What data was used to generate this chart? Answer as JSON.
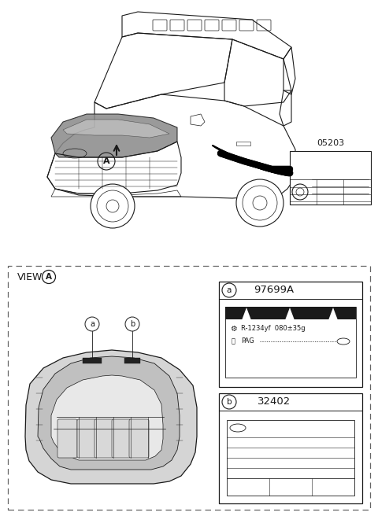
{
  "bg_color": "#ffffff",
  "part_05203": "05203",
  "part_97699A": "97699A",
  "part_32402": "32402",
  "label_text_ac": "R-1234yf  080±35g",
  "label_text_pag": "PAG",
  "line_color": "#1a1a1a",
  "gray_fill": "#c8c8c8",
  "light_gray": "#e0e0e0",
  "dashed_color": "#666666"
}
